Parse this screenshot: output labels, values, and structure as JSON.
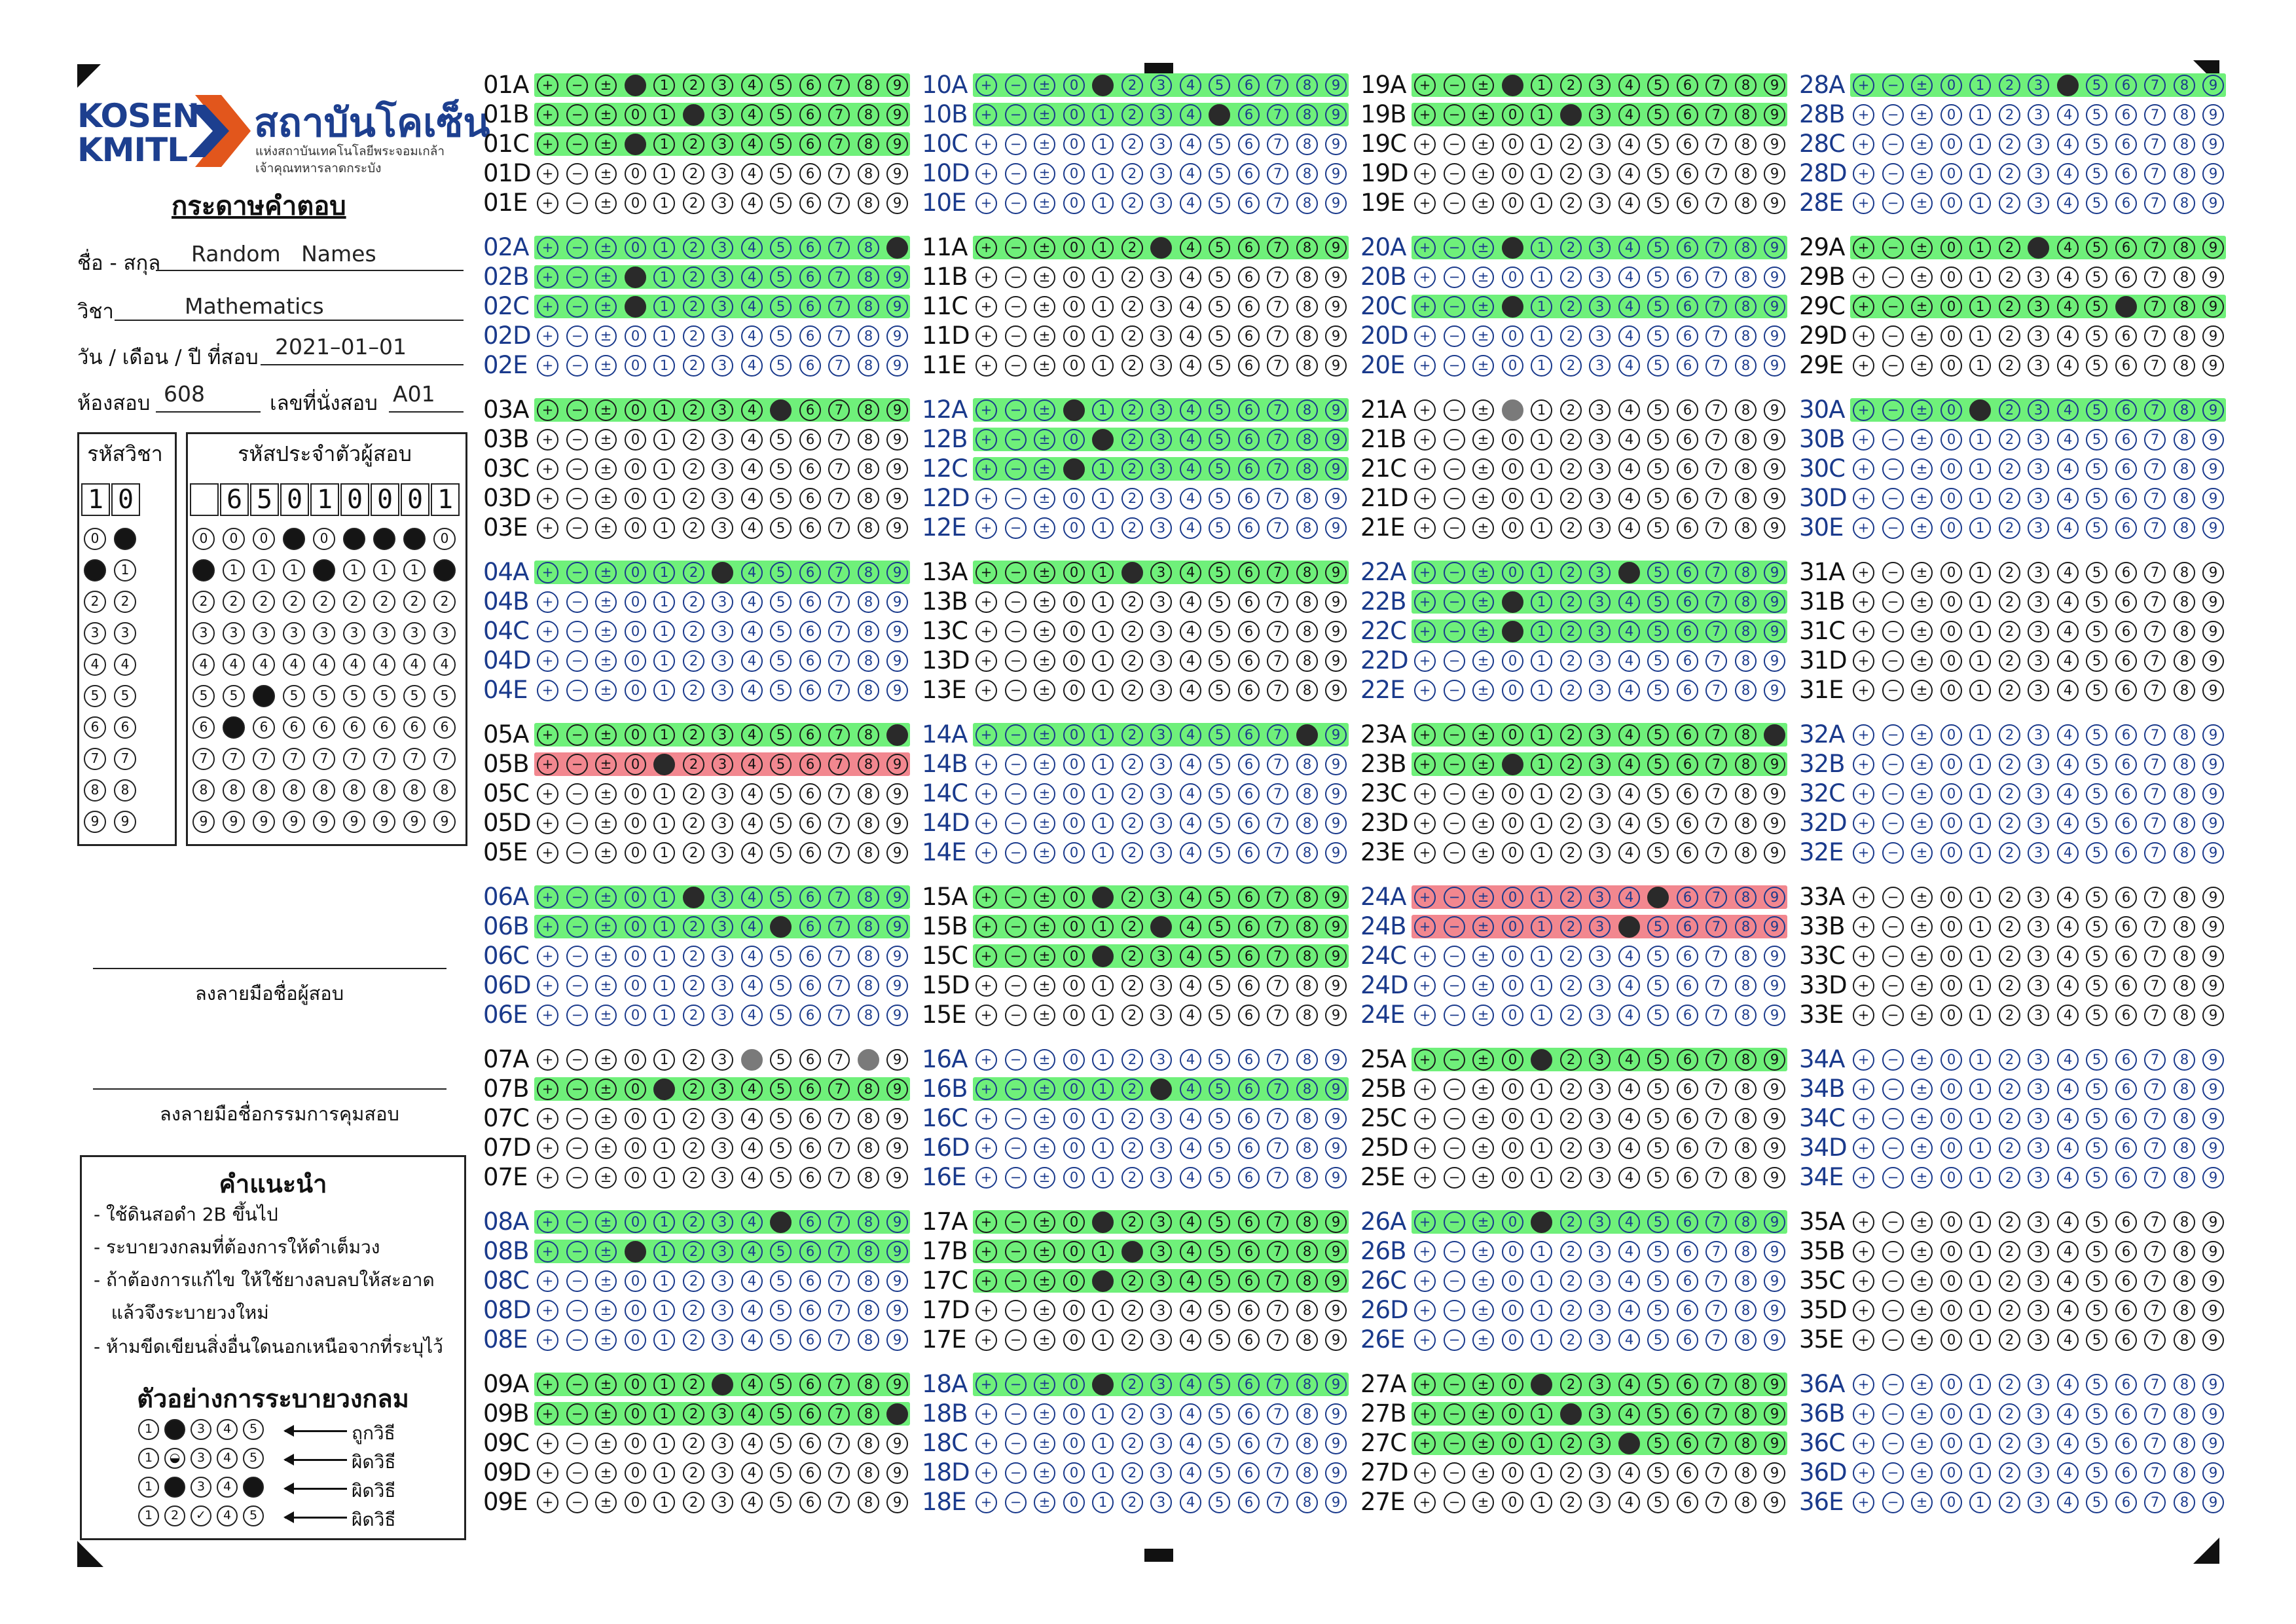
{
  "header": {
    "logo_kosen": "KOSEN",
    "logo_kmitl": "KMITL",
    "logo_thai": "สถาบันโคเซ็น",
    "logo_sub1": "แห่งสถาบันเทคโนโลยีพระจอมเกล้า",
    "logo_sub2": "เจ้าคุณทหารลาดกระบัง",
    "sheet_title": "กระดาษคำตอบ"
  },
  "fields": {
    "name_label": "ชื่อ - สกุล",
    "name_value": "Random   Names",
    "subject_label": "วิชา",
    "subject_value": "Mathematics",
    "date_label": "วัน / เดือน / ปี ที่สอบ",
    "date_value": "2021–01–01",
    "room_label": "ห้องสอบ",
    "room_value": "608",
    "seat_label": "เลขที่นั่งสอบ",
    "seat_value": "A01"
  },
  "subject_code": {
    "label": "รหัสวิชา",
    "digits": [
      "1",
      "0"
    ],
    "filled": [
      1,
      0
    ]
  },
  "student_id": {
    "label": "รหัสประจำตัวผู้สอบ",
    "digits": [
      "",
      "6",
      "5",
      "0",
      "1",
      "0",
      "0",
      "0",
      "1"
    ],
    "filled": [
      1,
      6,
      5,
      0,
      1,
      0,
      0,
      0,
      1
    ]
  },
  "bubble_digits": [
    "0",
    "1",
    "2",
    "3",
    "4",
    "5",
    "6",
    "7",
    "8",
    "9"
  ],
  "signatures": {
    "student": "ลงลายมือชื่อผู้สอบ",
    "proctor": "ลงลายมือชื่อกรรมการคุมสอบ"
  },
  "instructions": {
    "title": "คำแนะนำ",
    "items": [
      "- ใช้ดินสอดำ 2B ขึ้นไป",
      "- ระบายวงกลมที่ต้องการให้ดำเต็มวง",
      "- ถ้าต้องการแก้ไข ให้ใช้ยางลบลบให้สะอาด",
      "   แล้วจึงระบายวงใหม่",
      "- ห้ามขีดเขียนสิ่งอื่นใดนอกเหนือจากที่ระบุไว้"
    ],
    "example_title": "ตัวอย่างการระบายวงกลม",
    "example_labels": [
      "ถูกวิธี",
      "ผิดวิธี",
      "ผิดวิธี",
      "ผิดวิธี"
    ]
  },
  "answer_symbols": [
    "+",
    "−",
    "±",
    "0",
    "1",
    "2",
    "3",
    "4",
    "5",
    "6",
    "7",
    "8",
    "9"
  ],
  "answers": [
    {
      "q": "01",
      "rows": [
        {
          "s": "A",
          "hl": "g",
          "f": [
            3
          ]
        },
        {
          "s": "B",
          "hl": "g",
          "f": [
            5
          ]
        },
        {
          "s": "C",
          "hl": "g",
          "f": [
            3
          ]
        },
        {
          "s": "D"
        },
        {
          "s": "E"
        }
      ]
    },
    {
      "q": "02",
      "blue": true,
      "rows": [
        {
          "s": "A",
          "hl": "g",
          "f": [
            12
          ]
        },
        {
          "s": "B",
          "hl": "g",
          "f": [
            3
          ]
        },
        {
          "s": "C",
          "hl": "g",
          "f": [
            3
          ]
        },
        {
          "s": "D"
        },
        {
          "s": "E"
        }
      ]
    },
    {
      "q": "03",
      "rows": [
        {
          "s": "A",
          "hl": "g",
          "f": [
            8
          ]
        },
        {
          "s": "B"
        },
        {
          "s": "C"
        },
        {
          "s": "D"
        },
        {
          "s": "E"
        }
      ]
    },
    {
      "q": "04",
      "blue": true,
      "rows": [
        {
          "s": "A",
          "hl": "g",
          "f": [
            6
          ]
        },
        {
          "s": "B"
        },
        {
          "s": "C"
        },
        {
          "s": "D"
        },
        {
          "s": "E"
        }
      ]
    },
    {
      "q": "05",
      "rows": [
        {
          "s": "A",
          "hl": "g",
          "f": [
            12
          ]
        },
        {
          "s": "B",
          "hl": "r",
          "f": [
            4
          ]
        },
        {
          "s": "C"
        },
        {
          "s": "D"
        },
        {
          "s": "E"
        }
      ]
    },
    {
      "q": "06",
      "blue": true,
      "rows": [
        {
          "s": "A",
          "hl": "g",
          "f": [
            5
          ]
        },
        {
          "s": "B",
          "hl": "g",
          "f": [
            8
          ]
        },
        {
          "s": "C"
        },
        {
          "s": "D"
        },
        {
          "s": "E"
        }
      ]
    },
    {
      "q": "07",
      "rows": [
        {
          "s": "A",
          "g1": [
            7,
            11
          ]
        },
        {
          "s": "B",
          "hl": "g",
          "f": [
            4
          ]
        },
        {
          "s": "C"
        },
        {
          "s": "D"
        },
        {
          "s": "E"
        }
      ]
    },
    {
      "q": "08",
      "blue": true,
      "rows": [
        {
          "s": "A",
          "hl": "g",
          "f": [
            8
          ]
        },
        {
          "s": "B",
          "hl": "g",
          "f": [
            3
          ]
        },
        {
          "s": "C"
        },
        {
          "s": "D"
        },
        {
          "s": "E"
        }
      ]
    },
    {
      "q": "09",
      "rows": [
        {
          "s": "A",
          "hl": "g",
          "f": [
            6
          ]
        },
        {
          "s": "B",
          "hl": "g",
          "f": [
            12
          ]
        },
        {
          "s": "C"
        },
        {
          "s": "D"
        },
        {
          "s": "E"
        }
      ]
    },
    {
      "q": "10",
      "blue": true,
      "rows": [
        {
          "s": "A",
          "hl": "g",
          "f": [
            4
          ]
        },
        {
          "s": "B",
          "hl": "g",
          "f": [
            8
          ]
        },
        {
          "s": "C"
        },
        {
          "s": "D"
        },
        {
          "s": "E"
        }
      ]
    },
    {
      "q": "11",
      "rows": [
        {
          "s": "A",
          "hl": "g",
          "f": [
            6
          ]
        },
        {
          "s": "B"
        },
        {
          "s": "C"
        },
        {
          "s": "D"
        },
        {
          "s": "E"
        }
      ]
    },
    {
      "q": "12",
      "blue": true,
      "rows": [
        {
          "s": "A",
          "hl": "g",
          "f": [
            3
          ]
        },
        {
          "s": "B",
          "hl": "g",
          "f": [
            4
          ]
        },
        {
          "s": "C",
          "hl": "g",
          "f": [
            3
          ]
        },
        {
          "s": "D"
        },
        {
          "s": "E"
        }
      ]
    },
    {
      "q": "13",
      "rows": [
        {
          "s": "A",
          "hl": "g",
          "f": [
            5
          ]
        },
        {
          "s": "B"
        },
        {
          "s": "C"
        },
        {
          "s": "D"
        },
        {
          "s": "E"
        }
      ]
    },
    {
      "q": "14",
      "blue": true,
      "rows": [
        {
          "s": "A",
          "hl": "g",
          "f": [
            11
          ]
        },
        {
          "s": "B"
        },
        {
          "s": "C"
        },
        {
          "s": "D"
        },
        {
          "s": "E"
        }
      ]
    },
    {
      "q": "15",
      "rows": [
        {
          "s": "A",
          "hl": "g",
          "f": [
            4
          ]
        },
        {
          "s": "B",
          "hl": "g",
          "f": [
            6
          ]
        },
        {
          "s": "C",
          "hl": "g",
          "f": [
            4
          ]
        },
        {
          "s": "D"
        },
        {
          "s": "E"
        }
      ]
    },
    {
      "q": "16",
      "blue": true,
      "rows": [
        {
          "s": "A"
        },
        {
          "s": "B",
          "hl": "g",
          "f": [
            6
          ]
        },
        {
          "s": "C"
        },
        {
          "s": "D"
        },
        {
          "s": "E"
        }
      ]
    },
    {
      "q": "17",
      "rows": [
        {
          "s": "A",
          "hl": "g",
          "f": [
            4
          ]
        },
        {
          "s": "B",
          "hl": "g",
          "f": [
            5
          ]
        },
        {
          "s": "C",
          "hl": "g",
          "f": [
            4
          ]
        },
        {
          "s": "D"
        },
        {
          "s": "E"
        }
      ]
    },
    {
      "q": "18",
      "blue": true,
      "rows": [
        {
          "s": "A",
          "hl": "g",
          "f": [
            4
          ]
        },
        {
          "s": "B"
        },
        {
          "s": "C"
        },
        {
          "s": "D"
        },
        {
          "s": "E"
        }
      ]
    },
    {
      "q": "19",
      "rows": [
        {
          "s": "A",
          "hl": "g",
          "f": [
            3
          ]
        },
        {
          "s": "B",
          "hl": "g",
          "f": [
            5
          ]
        },
        {
          "s": "C"
        },
        {
          "s": "D"
        },
        {
          "s": "E"
        }
      ]
    },
    {
      "q": "20",
      "blue": true,
      "rows": [
        {
          "s": "A",
          "hl": "g",
          "f": [
            3
          ]
        },
        {
          "s": "B"
        },
        {
          "s": "C",
          "hl": "g",
          "f": [
            3
          ]
        },
        {
          "s": "D"
        },
        {
          "s": "E"
        }
      ]
    },
    {
      "q": "21",
      "rows": [
        {
          "s": "A",
          "g1": [
            3
          ]
        },
        {
          "s": "B"
        },
        {
          "s": "C"
        },
        {
          "s": "D"
        },
        {
          "s": "E"
        }
      ]
    },
    {
      "q": "22",
      "blue": true,
      "rows": [
        {
          "s": "A",
          "hl": "g",
          "f": [
            7
          ]
        },
        {
          "s": "B",
          "hl": "g",
          "f": [
            3
          ]
        },
        {
          "s": "C",
          "hl": "g",
          "f": [
            3
          ]
        },
        {
          "s": "D"
        },
        {
          "s": "E"
        }
      ]
    },
    {
      "q": "23",
      "rows": [
        {
          "s": "A",
          "hl": "g",
          "f": [
            12
          ]
        },
        {
          "s": "B",
          "hl": "g",
          "f": [
            3
          ]
        },
        {
          "s": "C"
        },
        {
          "s": "D"
        },
        {
          "s": "E"
        }
      ]
    },
    {
      "q": "24",
      "blue": true,
      "rows": [
        {
          "s": "A",
          "hl": "r",
          "f": [
            8
          ]
        },
        {
          "s": "B",
          "hl": "r",
          "f": [
            7
          ]
        },
        {
          "s": "C"
        },
        {
          "s": "D"
        },
        {
          "s": "E"
        }
      ]
    },
    {
      "q": "25",
      "rows": [
        {
          "s": "A",
          "hl": "g",
          "f": [
            4
          ]
        },
        {
          "s": "B"
        },
        {
          "s": "C"
        },
        {
          "s": "D"
        },
        {
          "s": "E"
        }
      ]
    },
    {
      "q": "26",
      "blue": true,
      "rows": [
        {
          "s": "A",
          "hl": "g",
          "f": [
            4
          ]
        },
        {
          "s": "B"
        },
        {
          "s": "C"
        },
        {
          "s": "D"
        },
        {
          "s": "E"
        }
      ]
    },
    {
      "q": "27",
      "rows": [
        {
          "s": "A",
          "hl": "g",
          "f": [
            4
          ]
        },
        {
          "s": "B",
          "hl": "g",
          "f": [
            5
          ]
        },
        {
          "s": "C",
          "hl": "g",
          "f": [
            7
          ]
        },
        {
          "s": "D"
        },
        {
          "s": "E"
        }
      ]
    },
    {
      "q": "28",
      "blue": true,
      "rows": [
        {
          "s": "A",
          "hl": "g",
          "f": [
            7
          ]
        },
        {
          "s": "B"
        },
        {
          "s": "C"
        },
        {
          "s": "D"
        },
        {
          "s": "E"
        }
      ]
    },
    {
      "q": "29",
      "rows": [
        {
          "s": "A",
          "hl": "g",
          "f": [
            6
          ]
        },
        {
          "s": "B"
        },
        {
          "s": "C",
          "hl": "g",
          "f": [
            9
          ]
        },
        {
          "s": "D"
        },
        {
          "s": "E"
        }
      ]
    },
    {
      "q": "30",
      "blue": true,
      "rows": [
        {
          "s": "A",
          "hl": "g",
          "f": [
            4
          ]
        },
        {
          "s": "B"
        },
        {
          "s": "C"
        },
        {
          "s": "D"
        },
        {
          "s": "E"
        }
      ]
    },
    {
      "q": "31",
      "rows": [
        {
          "s": "A"
        },
        {
          "s": "B"
        },
        {
          "s": "C"
        },
        {
          "s": "D"
        },
        {
          "s": "E"
        }
      ]
    },
    {
      "q": "32",
      "blue": true,
      "rows": [
        {
          "s": "A"
        },
        {
          "s": "B"
        },
        {
          "s": "C"
        },
        {
          "s": "D"
        },
        {
          "s": "E"
        }
      ]
    },
    {
      "q": "33",
      "rows": [
        {
          "s": "A"
        },
        {
          "s": "B"
        },
        {
          "s": "C"
        },
        {
          "s": "D"
        },
        {
          "s": "E"
        }
      ]
    },
    {
      "q": "34",
      "blue": true,
      "rows": [
        {
          "s": "A"
        },
        {
          "s": "B"
        },
        {
          "s": "C"
        },
        {
          "s": "D"
        },
        {
          "s": "E"
        }
      ]
    },
    {
      "q": "35",
      "rows": [
        {
          "s": "A"
        },
        {
          "s": "B"
        },
        {
          "s": "C"
        },
        {
          "s": "D"
        },
        {
          "s": "E"
        }
      ]
    },
    {
      "q": "36",
      "blue": true,
      "rows": [
        {
          "s": "A"
        },
        {
          "s": "B"
        },
        {
          "s": "C"
        },
        {
          "s": "D"
        },
        {
          "s": "E"
        }
      ]
    }
  ]
}
